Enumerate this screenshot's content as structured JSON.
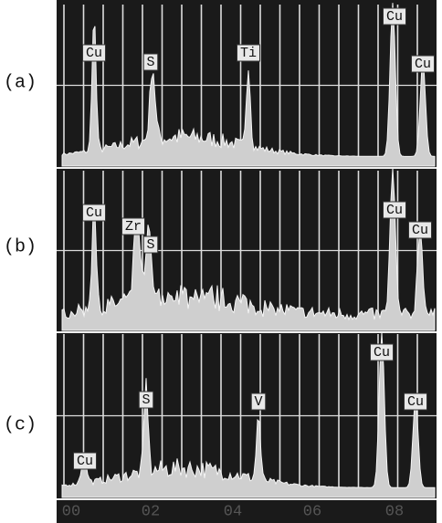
{
  "panels": [
    {
      "label": "(a)",
      "peaks": [
        "Cu",
        "S",
        "Ti",
        "Cu",
        "Cu"
      ]
    },
    {
      "label": "(b)",
      "peaks": [
        "Cu",
        "Zr",
        "S",
        "Cu",
        "Cu"
      ]
    },
    {
      "label": "(c)",
      "peaks": [
        "S",
        "V",
        "Cu",
        "Cu",
        "Cu"
      ]
    }
  ],
  "x_axis_labels": [
    "00",
    "02",
    "04",
    "06",
    "08"
  ]
}
